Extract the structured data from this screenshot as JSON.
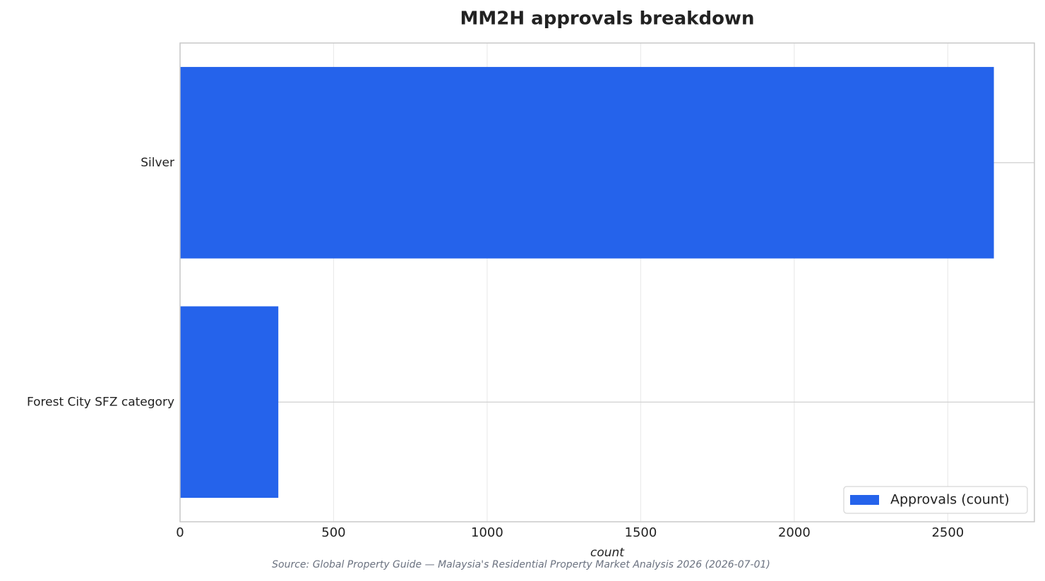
{
  "chart_data": {
    "type": "barh",
    "title": "MM2H approvals breakdown",
    "categories": [
      "Silver",
      "Forest City SFZ category"
    ],
    "series": [
      {
        "name": "Approvals (count)",
        "color": "#2563eb",
        "values": [
          2650,
          320
        ]
      }
    ],
    "xlim": [
      0,
      2782
    ],
    "xticks": [
      0,
      500,
      1000,
      1500,
      2000,
      2500
    ],
    "xlabel": "count",
    "grid": true,
    "legend": "lower right",
    "source": "Source: Global Property Guide — Malaysia's Residential Property Market Analysis 2026 (2026-07-01)"
  }
}
